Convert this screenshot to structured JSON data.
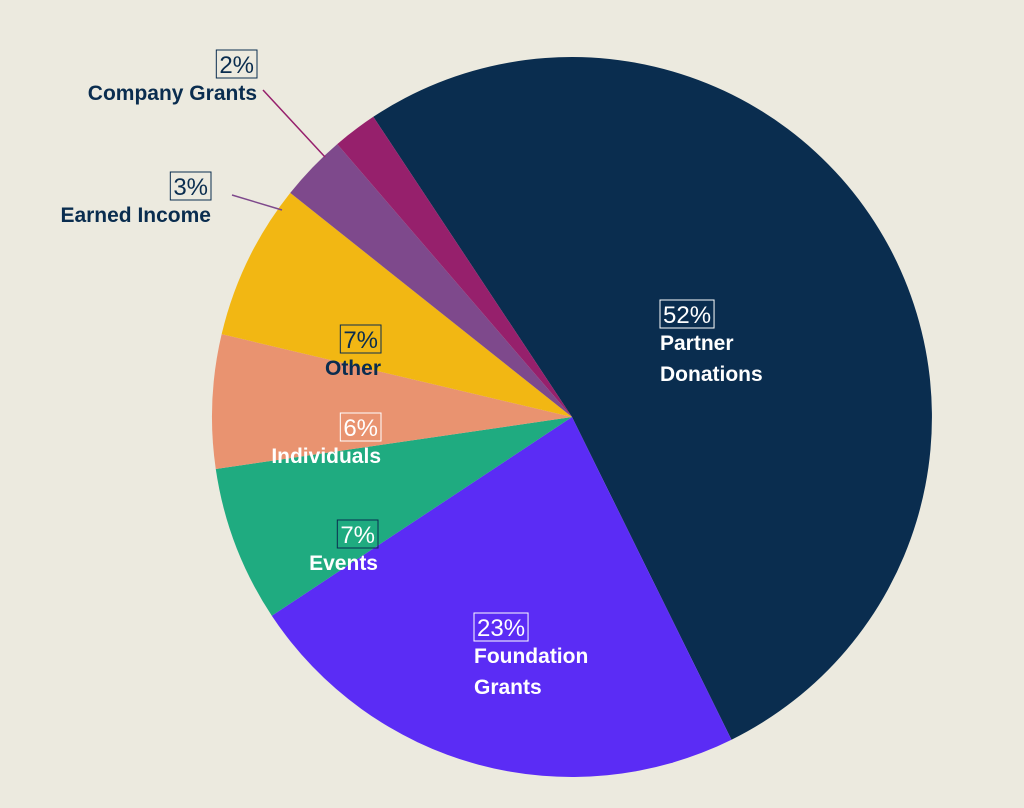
{
  "background": "#ECEADF",
  "chart_data": {
    "type": "pie",
    "title": "",
    "start_angle_deg": 0,
    "direction": "clockwise",
    "slices": [
      {
        "label_lines": [
          "Partner",
          "Donations"
        ],
        "value": 52,
        "value_label": "52%",
        "color": "#0A2D4F",
        "text_color": "#FFFFFF",
        "box_color": "#FFFFFF"
      },
      {
        "label_lines": [
          "Foundation",
          "Grants"
        ],
        "value": 23,
        "value_label": "23%",
        "color": "#5B2CF5",
        "text_color": "#FFFFFF",
        "box_color": "#FFFFFF"
      },
      {
        "label_lines": [
          "Events"
        ],
        "value": 7,
        "value_label": "7%",
        "color": "#1FAB80",
        "text_color": "#FFFFFF",
        "box_color": "#0A2D4F"
      },
      {
        "label_lines": [
          "Individuals"
        ],
        "value": 6,
        "value_label": "6%",
        "color": "#E99370",
        "text_color": "#FFFFFF",
        "box_color": "#FFFFFF"
      },
      {
        "label_lines": [
          "Other"
        ],
        "value": 7,
        "value_label": "7%",
        "color": "#F2B713",
        "text_color": "#0A2D4F",
        "box_color": "#0A2D4F"
      },
      {
        "label_lines": [
          "Earned Income"
        ],
        "value": 3,
        "value_label": "3%",
        "color": "#7E498C",
        "text_color": "#0A2D4F",
        "box_color": "#0A2D4F",
        "leader_color": "#7E498C"
      },
      {
        "label_lines": [
          "Company Grants"
        ],
        "value": 2,
        "value_label": "2%",
        "color": "#96206C",
        "text_color": "#0A2D4F",
        "box_color": "#0A2D4F",
        "leader_color": "#96206C"
      }
    ]
  }
}
